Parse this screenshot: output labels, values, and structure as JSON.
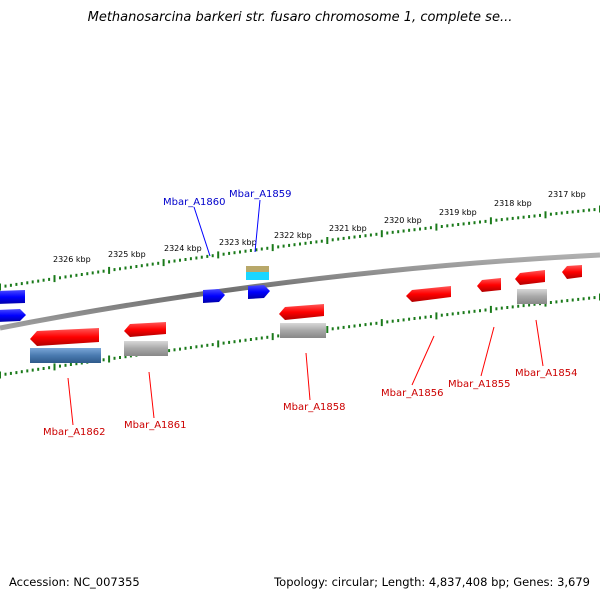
{
  "title": "Methanosarcina barkeri str. fusaro chromosome 1, complete se...",
  "footer": {
    "accession": "Accession: NC_007355",
    "summary": "Topology: circular; Length: 4,837,408 bp; Genes: 3,679"
  },
  "colors": {
    "forward_strand_gene": "#0000ff",
    "reverse_strand_gene": "#ff0000",
    "scale_ticks": "#1a7a1a",
    "backbone": "#808080"
  },
  "scale_labels": [
    "2326 kbp",
    "2325 kbp",
    "2324 kbp",
    "2323 kbp",
    "2322 kbp",
    "2321 kbp",
    "2320 kbp",
    "2319 kbp",
    "2318 kbp",
    "2317 kbp"
  ],
  "gene_labels": {
    "forward": [
      "Mbar_A1860",
      "Mbar_A1859"
    ],
    "reverse": [
      "Mbar_A1862",
      "Mbar_A1861",
      "Mbar_A1858",
      "Mbar_A1856",
      "Mbar_A1855",
      "Mbar_A1854"
    ]
  }
}
